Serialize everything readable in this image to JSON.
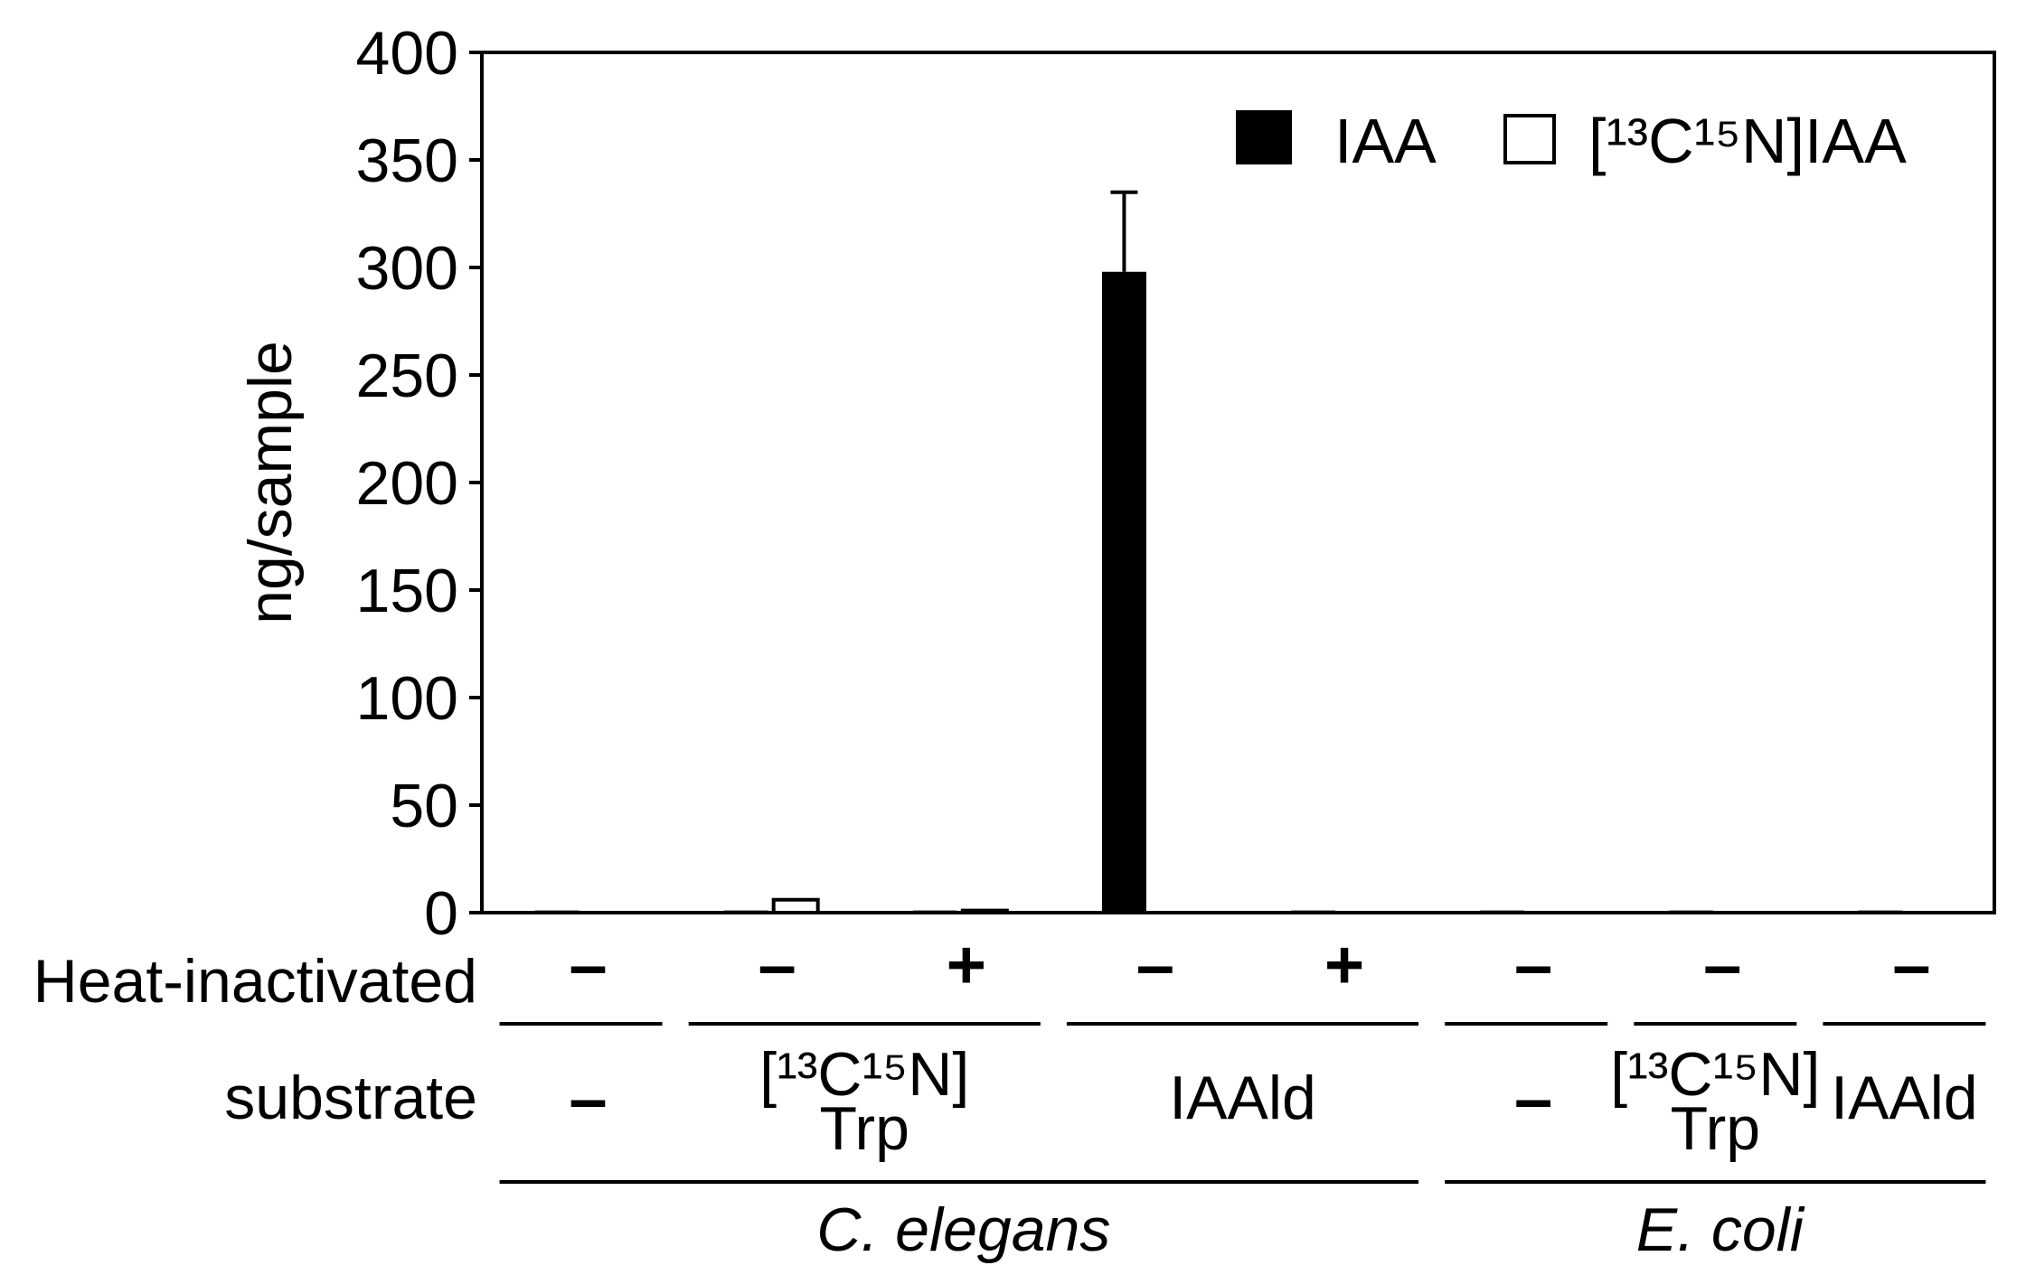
{
  "chart_data": {
    "type": "bar",
    "ylabel": "ng/sample",
    "ylim": [
      0,
      400
    ],
    "yticks": [
      0,
      50,
      100,
      150,
      200,
      250,
      300,
      350,
      400
    ],
    "grid": false,
    "legend_position": "top-right",
    "series": [
      {
        "name": "IAA",
        "color": "#000000",
        "values": [
          1,
          1,
          1,
          298,
          1,
          1,
          1,
          1
        ],
        "error": [
          0,
          0,
          0,
          37,
          0,
          0,
          0,
          0
        ]
      },
      {
        "name": "[¹³C¹⁵N]IAA",
        "color": "#ffffff",
        "values": [
          0,
          6,
          1,
          0,
          0,
          0,
          0,
          0
        ]
      }
    ],
    "x_rows": {
      "heat_inactivated": {
        "label": "Heat-inactivated",
        "values": [
          "–",
          "–",
          "+",
          "–",
          "+",
          "–",
          "–",
          "–"
        ]
      },
      "substrate": {
        "label": "substrate",
        "groups": [
          {
            "lines": [
              "–"
            ],
            "span": [
              0,
              0
            ]
          },
          {
            "lines": [
              "[¹³C¹⁵N]",
              "Trp"
            ],
            "span": [
              1,
              2
            ]
          },
          {
            "lines": [
              "IAAld"
            ],
            "span": [
              3,
              4
            ]
          },
          {
            "lines": [
              "–"
            ],
            "span": [
              5,
              5
            ]
          },
          {
            "lines": [
              "[¹³C¹⁵N]",
              "Trp"
            ],
            "span": [
              6,
              6
            ]
          },
          {
            "lines": [
              "IAAld"
            ],
            "span": [
              7,
              7
            ]
          }
        ]
      },
      "organism": {
        "groups": [
          {
            "name": "C. elegans",
            "span": [
              0,
              4
            ]
          },
          {
            "name": "E. coli",
            "span": [
              5,
              7
            ]
          }
        ]
      }
    }
  }
}
